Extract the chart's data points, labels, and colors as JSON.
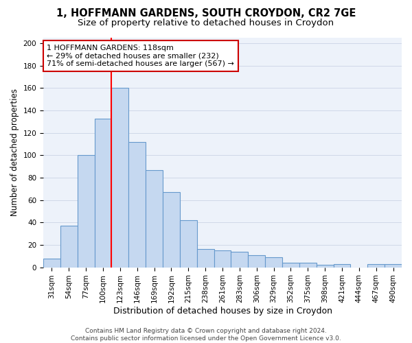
{
  "title1": "1, HOFFMANN GARDENS, SOUTH CROYDON, CR2 7GE",
  "title2": "Size of property relative to detached houses in Croydon",
  "xlabel": "Distribution of detached houses by size in Croydon",
  "ylabel": "Number of detached properties",
  "categories": [
    "31sqm",
    "54sqm",
    "77sqm",
    "100sqm",
    "123sqm",
    "146sqm",
    "169sqm",
    "192sqm",
    "215sqm",
    "238sqm",
    "261sqm",
    "283sqm",
    "306sqm",
    "329sqm",
    "352sqm",
    "375sqm",
    "398sqm",
    "421sqm",
    "444sqm",
    "467sqm",
    "490sqm"
  ],
  "values": [
    8,
    37,
    100,
    133,
    160,
    112,
    87,
    67,
    42,
    16,
    15,
    14,
    11,
    9,
    4,
    4,
    2,
    3,
    0,
    3,
    3
  ],
  "bar_color": "#c5d8f0",
  "bar_edge_color": "#6699cc",
  "annotation_text": "1 HOFFMANN GARDENS: 118sqm\n← 29% of detached houses are smaller (232)\n71% of semi-detached houses are larger (567) →",
  "annotation_box_color": "#ffffff",
  "annotation_box_edge_color": "#cc0000",
  "red_line_index": 4,
  "ylim": [
    0,
    205
  ],
  "yticks": [
    0,
    20,
    40,
    60,
    80,
    100,
    120,
    140,
    160,
    180,
    200
  ],
  "grid_color": "#d0d8e8",
  "background_color": "#edf2fa",
  "footer_text": "Contains HM Land Registry data © Crown copyright and database right 2024.\nContains public sector information licensed under the Open Government Licence v3.0.",
  "title1_fontsize": 10.5,
  "title2_fontsize": 9.5,
  "xlabel_fontsize": 9,
  "ylabel_fontsize": 8.5,
  "tick_fontsize": 7.5,
  "annotation_fontsize": 8,
  "footer_fontsize": 6.5
}
